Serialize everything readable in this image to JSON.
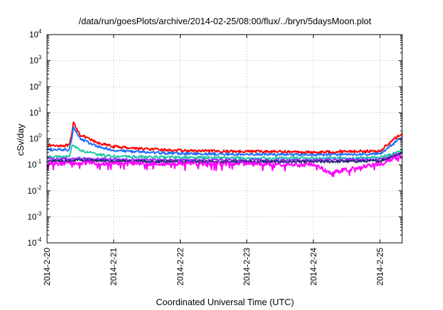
{
  "chart_data": {
    "type": "line",
    "title": "/data/run/goesPlots/archive/2014-02-25/08:00/flux/../bryn/5daysMoon.plot",
    "xlabel": "Coordinated Universal Time (UTC)",
    "ylabel": "cSv/day",
    "yscale": "log",
    "ylim": [
      0.0001,
      10000
    ],
    "xlim": [
      "2014-02-20T00:00",
      "2014-02-25T08:00"
    ],
    "grid": true,
    "legend": "none",
    "x_ticks": [
      "2014-2-20",
      "2014-2-21",
      "2014-2-22",
      "2014-2-23",
      "2014-2-24",
      "2014-2-25"
    ],
    "y_ticks": [
      {
        "base": "10",
        "exp": "-4",
        "value": 0.0001
      },
      {
        "base": "10",
        "exp": "-3",
        "value": 0.001
      },
      {
        "base": "10",
        "exp": "-2",
        "value": 0.01
      },
      {
        "base": "10",
        "exp": "-1",
        "value": 0.1
      },
      {
        "base": "10",
        "exp": "0",
        "value": 1
      },
      {
        "base": "10",
        "exp": "1",
        "value": 10
      },
      {
        "base": "10",
        "exp": "2",
        "value": 100
      },
      {
        "base": "10",
        "exp": "3",
        "value": 1000
      },
      {
        "base": "10",
        "exp": "4",
        "value": 10000
      }
    ],
    "series": [
      {
        "color": "#ff0000",
        "x": [
          "2014-02-20T00:00",
          "2014-02-20T08:00",
          "2014-02-20T09:00",
          "2014-02-20T09:30",
          "2014-02-20T12:00",
          "2014-02-20T18:00",
          "2014-02-21T00:00",
          "2014-02-21T12:00",
          "2014-02-22T00:00",
          "2014-02-22T12:00",
          "2014-02-23T00:00",
          "2014-02-23T12:00",
          "2014-02-24T00:00",
          "2014-02-24T12:00",
          "2014-02-25T00:00",
          "2014-02-25T04:00",
          "2014-02-25T08:00"
        ],
        "y": [
          0.55,
          0.55,
          1.6,
          4.2,
          1.4,
          0.7,
          0.5,
          0.4,
          0.35,
          0.33,
          0.33,
          0.32,
          0.3,
          0.33,
          0.33,
          0.8,
          1.6
        ]
      },
      {
        "color": "#1f6fff",
        "x": [
          "2014-02-20T00:00",
          "2014-02-20T08:00",
          "2014-02-20T09:00",
          "2014-02-20T09:30",
          "2014-02-20T12:00",
          "2014-02-20T18:00",
          "2014-02-21T00:00",
          "2014-02-21T12:00",
          "2014-02-22T00:00",
          "2014-02-22T12:00",
          "2014-02-23T00:00",
          "2014-02-23T12:00",
          "2014-02-24T00:00",
          "2014-02-24T12:00",
          "2014-02-25T00:00",
          "2014-02-25T04:00",
          "2014-02-25T08:00"
        ],
        "y": [
          0.38,
          0.38,
          1.2,
          3.0,
          1.0,
          0.5,
          0.36,
          0.3,
          0.27,
          0.26,
          0.25,
          0.25,
          0.24,
          0.25,
          0.26,
          0.55,
          1.2
        ]
      },
      {
        "color": "#20c8a0",
        "x": [
          "2014-02-20T00:00",
          "2014-02-20T08:00",
          "2014-02-20T09:00",
          "2014-02-20T09:30",
          "2014-02-20T12:00",
          "2014-02-20T18:00",
          "2014-02-21T00:00",
          "2014-02-21T12:00",
          "2014-02-22T00:00",
          "2014-02-22T12:00",
          "2014-02-23T00:00",
          "2014-02-23T12:00",
          "2014-02-24T00:00",
          "2014-02-24T12:00",
          "2014-02-25T00:00",
          "2014-02-25T04:00",
          "2014-02-25T08:00"
        ],
        "y": [
          0.2,
          0.2,
          0.5,
          0.6,
          0.35,
          0.25,
          0.21,
          0.2,
          0.19,
          0.19,
          0.18,
          0.18,
          0.18,
          0.18,
          0.19,
          0.25,
          0.4
        ]
      },
      {
        "color": "#9b30ff",
        "x": [
          "2014-02-20T00:00",
          "2014-02-20T08:00",
          "2014-02-20T12:00",
          "2014-02-21T00:00",
          "2014-02-22T00:00",
          "2014-02-23T00:00",
          "2014-02-24T00:00",
          "2014-02-25T00:00",
          "2014-02-25T08:00"
        ],
        "y": [
          0.17,
          0.17,
          0.18,
          0.16,
          0.15,
          0.15,
          0.15,
          0.16,
          0.3
        ]
      },
      {
        "color": "#2a2a78",
        "x": [
          "2014-02-20T00:00",
          "2014-02-20T08:00",
          "2014-02-20T12:00",
          "2014-02-21T00:00",
          "2014-02-22T00:00",
          "2014-02-23T00:00",
          "2014-02-24T00:00",
          "2014-02-25T00:00",
          "2014-02-25T08:00"
        ],
        "y": [
          0.14,
          0.14,
          0.15,
          0.14,
          0.13,
          0.13,
          0.13,
          0.14,
          0.28
        ]
      },
      {
        "color": "#ff00ff",
        "x": [
          "2014-02-20T00:00",
          "2014-02-20T08:00",
          "2014-02-20T12:00",
          "2014-02-21T00:00",
          "2014-02-22T00:00",
          "2014-02-23T00:00",
          "2014-02-24T00:00",
          "2014-02-24T06:00",
          "2014-02-25T00:00",
          "2014-02-25T08:00"
        ],
        "y": [
          0.11,
          0.11,
          0.12,
          0.11,
          0.11,
          0.11,
          0.1,
          0.05,
          0.11,
          0.22
        ]
      }
    ]
  }
}
